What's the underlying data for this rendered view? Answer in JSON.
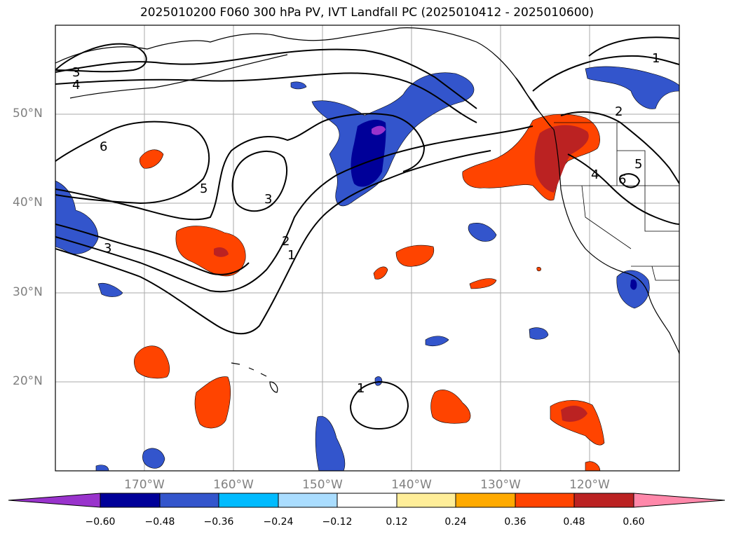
{
  "title": "2025010200 F060 300 hPa PV, IVT Landfall PC (2025010412 - 2025010600)",
  "map": {
    "lon_range": [
      -180,
      -110
    ],
    "lat_range": [
      10,
      60
    ],
    "gridlines": true,
    "lat_labels": [
      "50°N",
      "40°N",
      "30°N",
      "20°N"
    ],
    "lon_labels": [
      "170°W",
      "160°W",
      "150°W",
      "140°W",
      "130°W",
      "120°W"
    ]
  },
  "contour_labels": [
    "3",
    "4",
    "6",
    "5",
    "3",
    "2",
    "1",
    "3",
    "1",
    "2",
    "5",
    "4",
    "6",
    "1"
  ],
  "colorbar": {
    "colors": [
      "#9933cc",
      "#000099",
      "#3355cc",
      "#00bbff",
      "#aaddff",
      "#ffffff",
      "#ffee99",
      "#ffaa00",
      "#ff4400",
      "#bb2222",
      "#ff88aa"
    ],
    "ticks": [
      "−0.60",
      "−0.48",
      "−0.36",
      "−0.24",
      "−0.12",
      "0.12",
      "0.24",
      "0.36",
      "0.48",
      "0.60"
    ],
    "extend": "both"
  }
}
